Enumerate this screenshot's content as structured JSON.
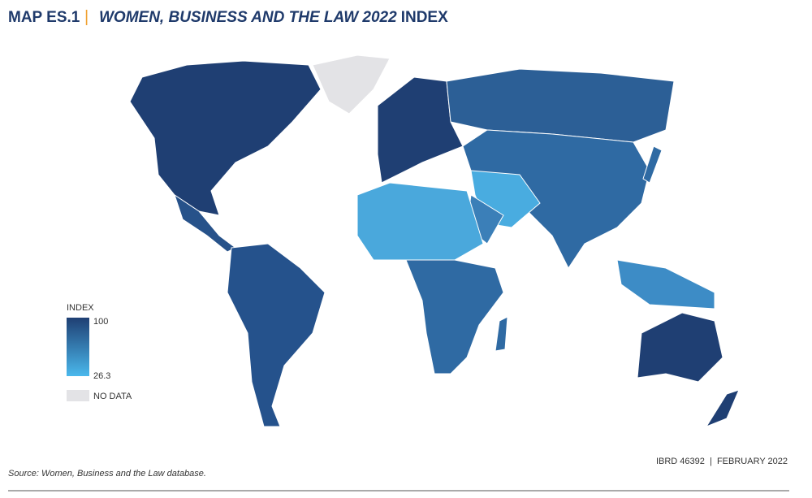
{
  "header": {
    "label": "MAP ES.1",
    "title_italic": "WOMEN, BUSINESS AND THE LAW 2022",
    "title_rest": "INDEX"
  },
  "legend": {
    "title": "INDEX",
    "max": 100,
    "min": 26.3,
    "no_data": "NO DATA"
  },
  "footer": {
    "map_id": "IBRD 46392  |  FEBRUARY 2022",
    "source": "Source: Women, Business and the Law database."
  }
}
